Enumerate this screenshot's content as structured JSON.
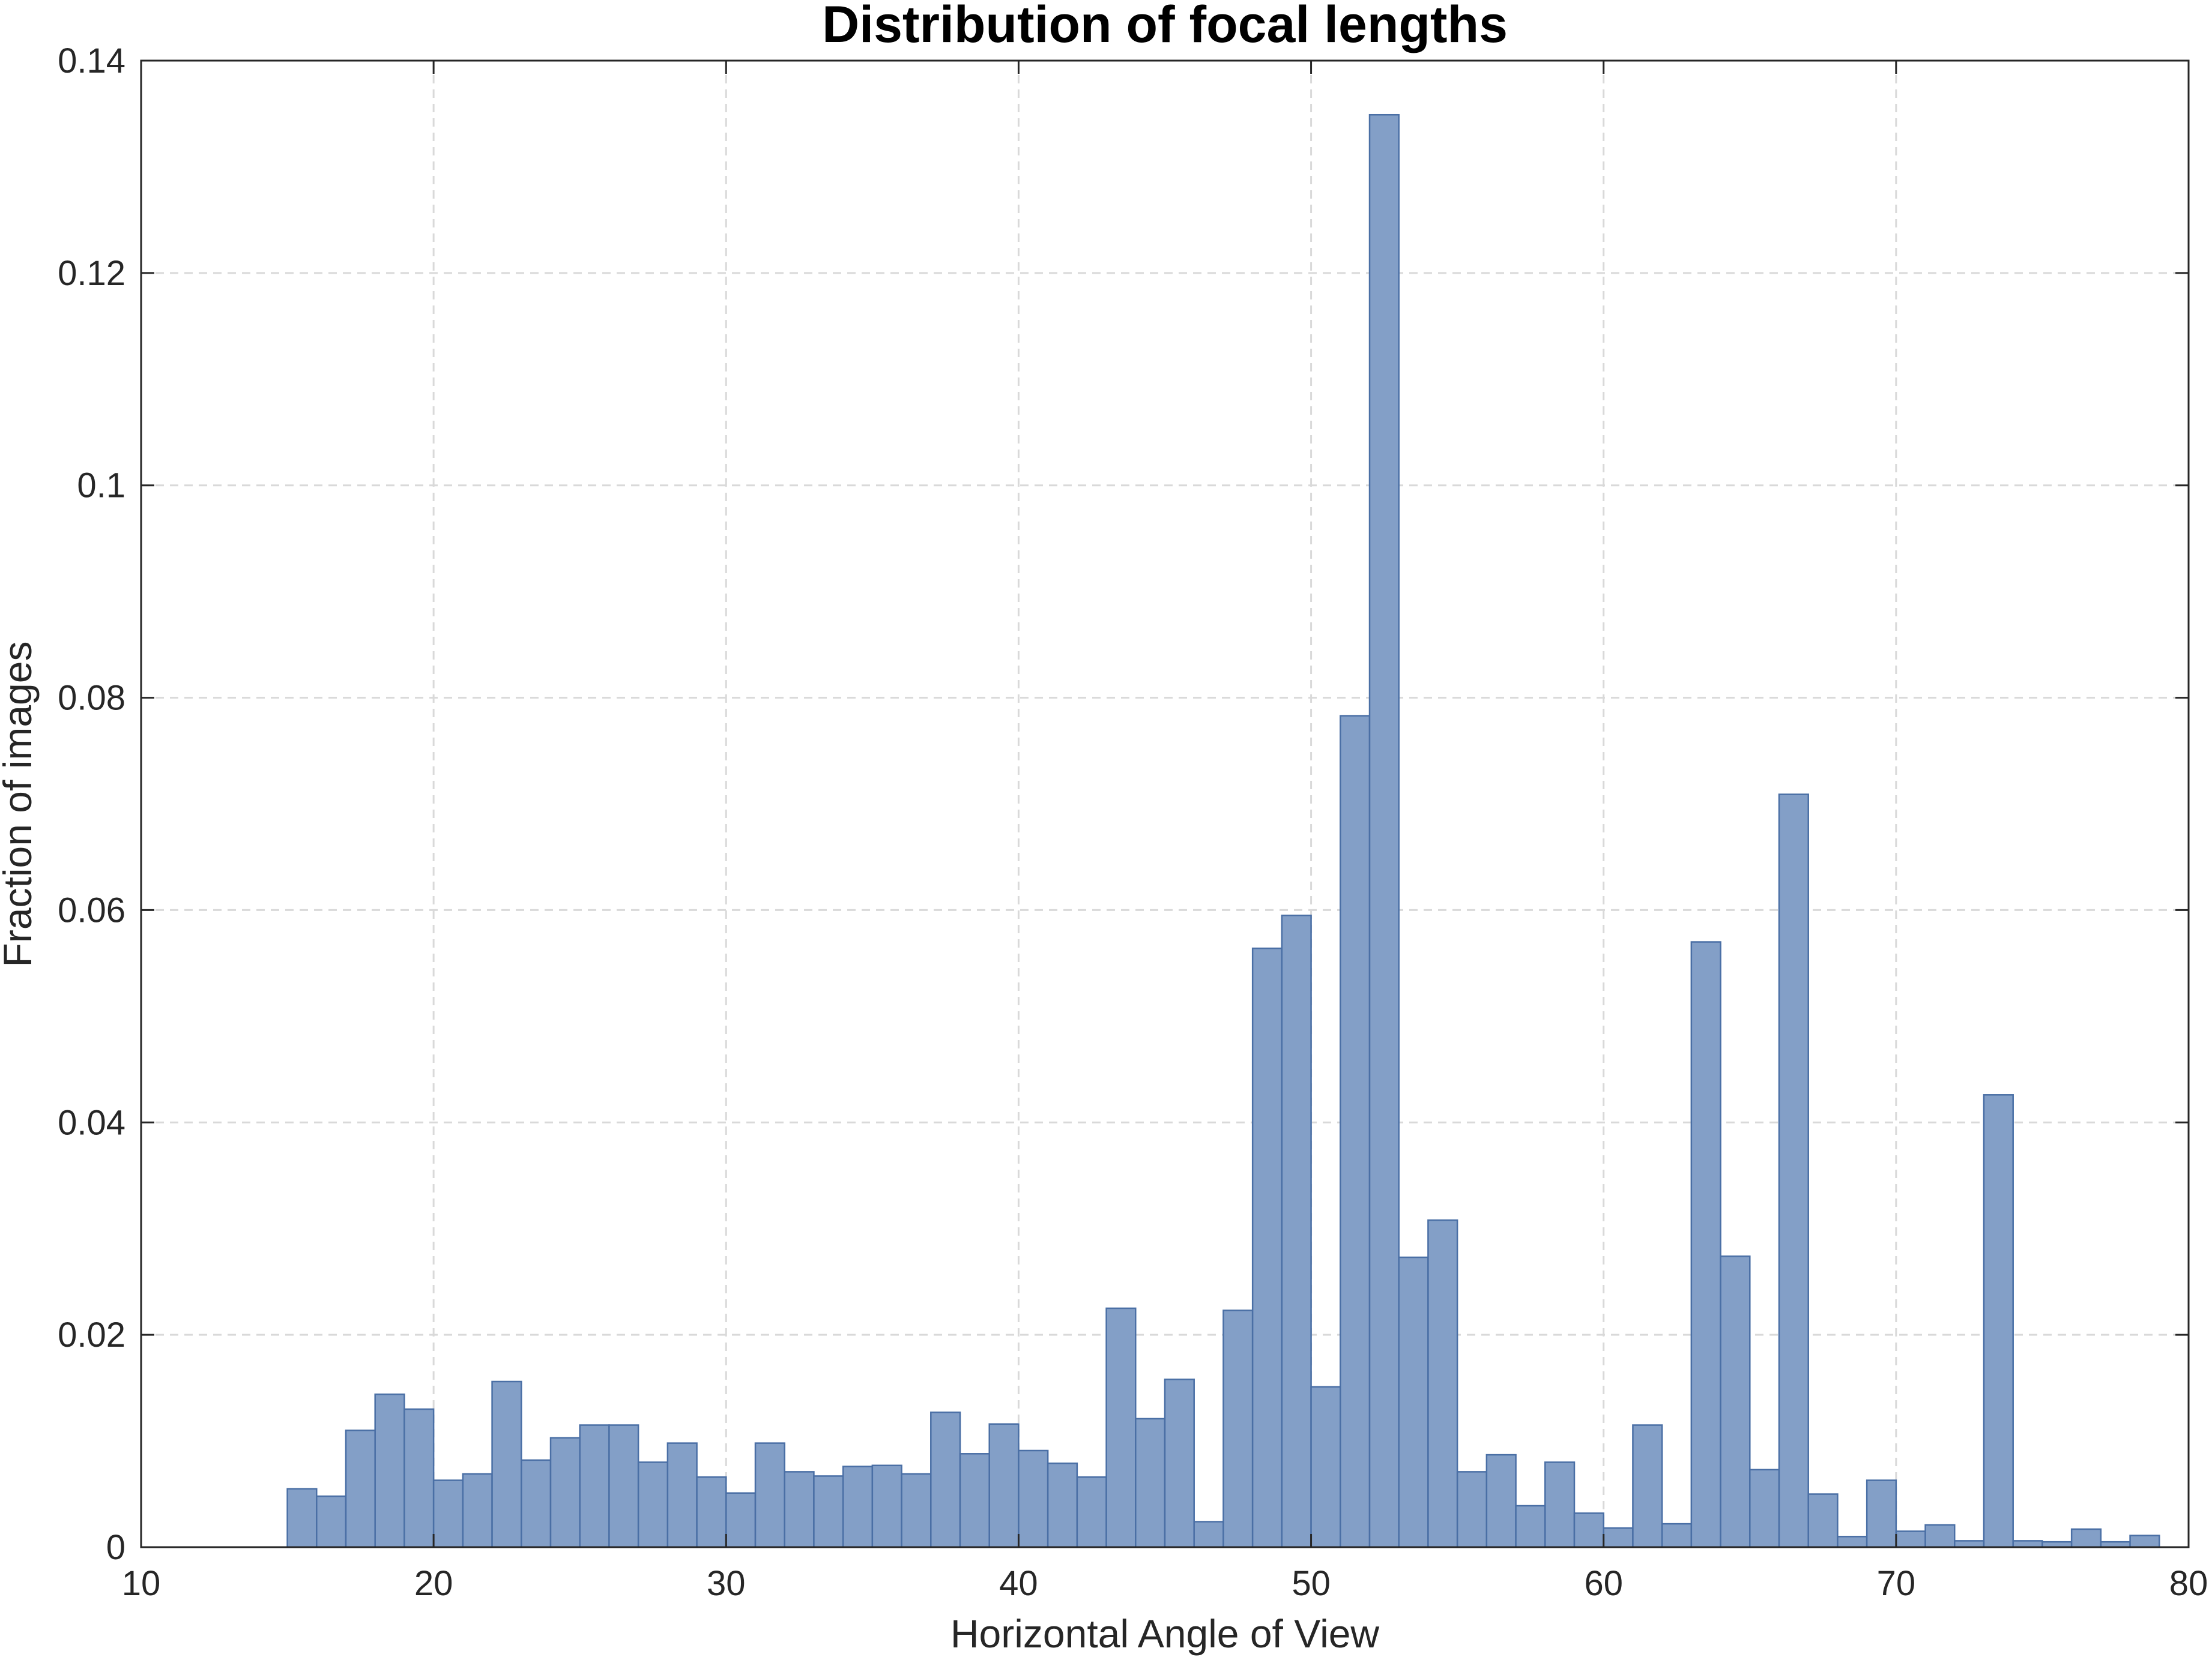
{
  "chart_data": {
    "type": "bar",
    "title": "Distribution of focal lengths",
    "xlabel": "Horizontal Angle of View",
    "ylabel": "Fraction of images",
    "xlim": [
      10,
      80
    ],
    "ylim": [
      0,
      0.14
    ],
    "xticks": [
      10,
      20,
      30,
      40,
      50,
      60,
      70,
      80
    ],
    "yticks": [
      0,
      0.02,
      0.04,
      0.06,
      0.08,
      0.1,
      0.12,
      0.14
    ],
    "xtick_labels": [
      "10",
      "20",
      "30",
      "40",
      "50",
      "60",
      "70",
      "80"
    ],
    "ytick_labels": [
      "0",
      "0.02",
      "0.04",
      "0.06",
      "0.08",
      "0.1",
      "0.12",
      "0.14"
    ],
    "grid": true,
    "bin_start": 15,
    "bin_width": 1,
    "values": [
      0.0055,
      0.0048,
      0.011,
      0.0144,
      0.013,
      0.0063,
      0.0069,
      0.0156,
      0.0082,
      0.0103,
      0.0115,
      0.0115,
      0.008,
      0.0098,
      0.0066,
      0.0051,
      0.0098,
      0.0071,
      0.0067,
      0.0076,
      0.0077,
      0.0069,
      0.0127,
      0.0088,
      0.0116,
      0.0091,
      0.0079,
      0.0066,
      0.0225,
      0.0121,
      0.0158,
      0.0024,
      0.0223,
      0.0564,
      0.0595,
      0.0151,
      0.0783,
      0.1349,
      0.0273,
      0.0308,
      0.0071,
      0.0087,
      0.0039,
      0.008,
      0.0032,
      0.0018,
      0.0115,
      0.0022,
      0.057,
      0.0274,
      0.0073,
      0.0709,
      0.005,
      0.001,
      0.0063,
      0.0015,
      0.0021,
      0.0006,
      0.0426,
      0.0006,
      0.0005,
      0.0017,
      0.0005,
      0.0011
    ],
    "bar_color": "#839fc7",
    "bar_edge_color": "#4a6fa5"
  }
}
